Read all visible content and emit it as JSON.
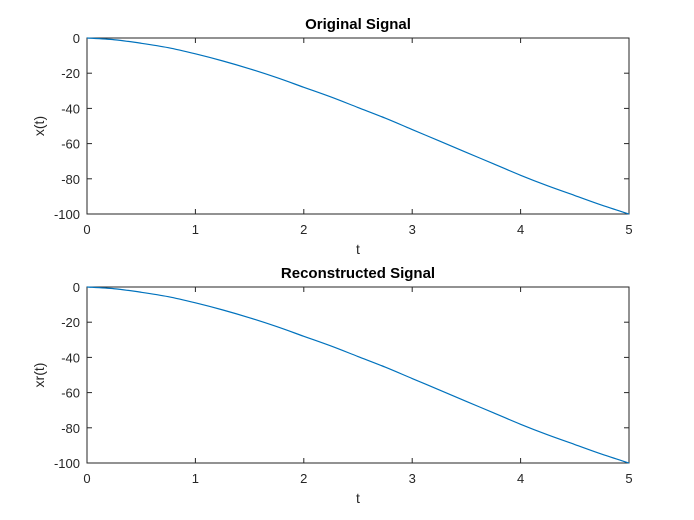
{
  "chart_data": [
    {
      "type": "line",
      "title": "Original Signal",
      "xlabel": "t",
      "ylabel": "x(t)",
      "xlim": [
        0,
        5
      ],
      "ylim": [
        -100,
        0
      ],
      "xticks": [
        "0",
        "1",
        "2",
        "3",
        "4",
        "5"
      ],
      "yticks": [
        "0",
        "-20",
        "-40",
        "-60",
        "-80",
        "-100"
      ],
      "grid": false,
      "line_color": "#0072bd",
      "series": [
        {
          "x": [
            0,
            0.25,
            0.5,
            0.75,
            1.0,
            1.25,
            1.5,
            1.75,
            2.0,
            2.25,
            2.5,
            2.75,
            3.0,
            3.25,
            3.5,
            3.75,
            4.0,
            4.25,
            4.5,
            4.75,
            5.0
          ],
          "y": [
            0,
            -1,
            -3,
            -5.5,
            -9,
            -13,
            -17.5,
            -22.5,
            -28,
            -33.5,
            -39.5,
            -45.5,
            -52,
            -58.5,
            -65,
            -71.5,
            -78,
            -84,
            -89.5,
            -95,
            -100
          ]
        }
      ]
    },
    {
      "type": "line",
      "title": "Reconstructed Signal",
      "xlabel": "t",
      "ylabel": "xr(t)",
      "xlim": [
        0,
        5
      ],
      "ylim": [
        -100,
        0
      ],
      "xticks": [
        "0",
        "1",
        "2",
        "3",
        "4",
        "5"
      ],
      "yticks": [
        "0",
        "-20",
        "-40",
        "-60",
        "-80",
        "-100"
      ],
      "grid": false,
      "line_color": "#0072bd",
      "series": [
        {
          "x": [
            0,
            0.25,
            0.5,
            0.75,
            1.0,
            1.25,
            1.5,
            1.75,
            2.0,
            2.25,
            2.5,
            2.75,
            3.0,
            3.25,
            3.5,
            3.75,
            4.0,
            4.25,
            4.5,
            4.75,
            5.0
          ],
          "y": [
            0,
            -1,
            -3,
            -5.5,
            -9,
            -13,
            -17.5,
            -22.5,
            -28,
            -33.5,
            -39.5,
            -45.5,
            -52,
            -58.5,
            -65,
            -71.5,
            -78,
            -84,
            -89.5,
            -95,
            -100
          ]
        }
      ]
    }
  ]
}
